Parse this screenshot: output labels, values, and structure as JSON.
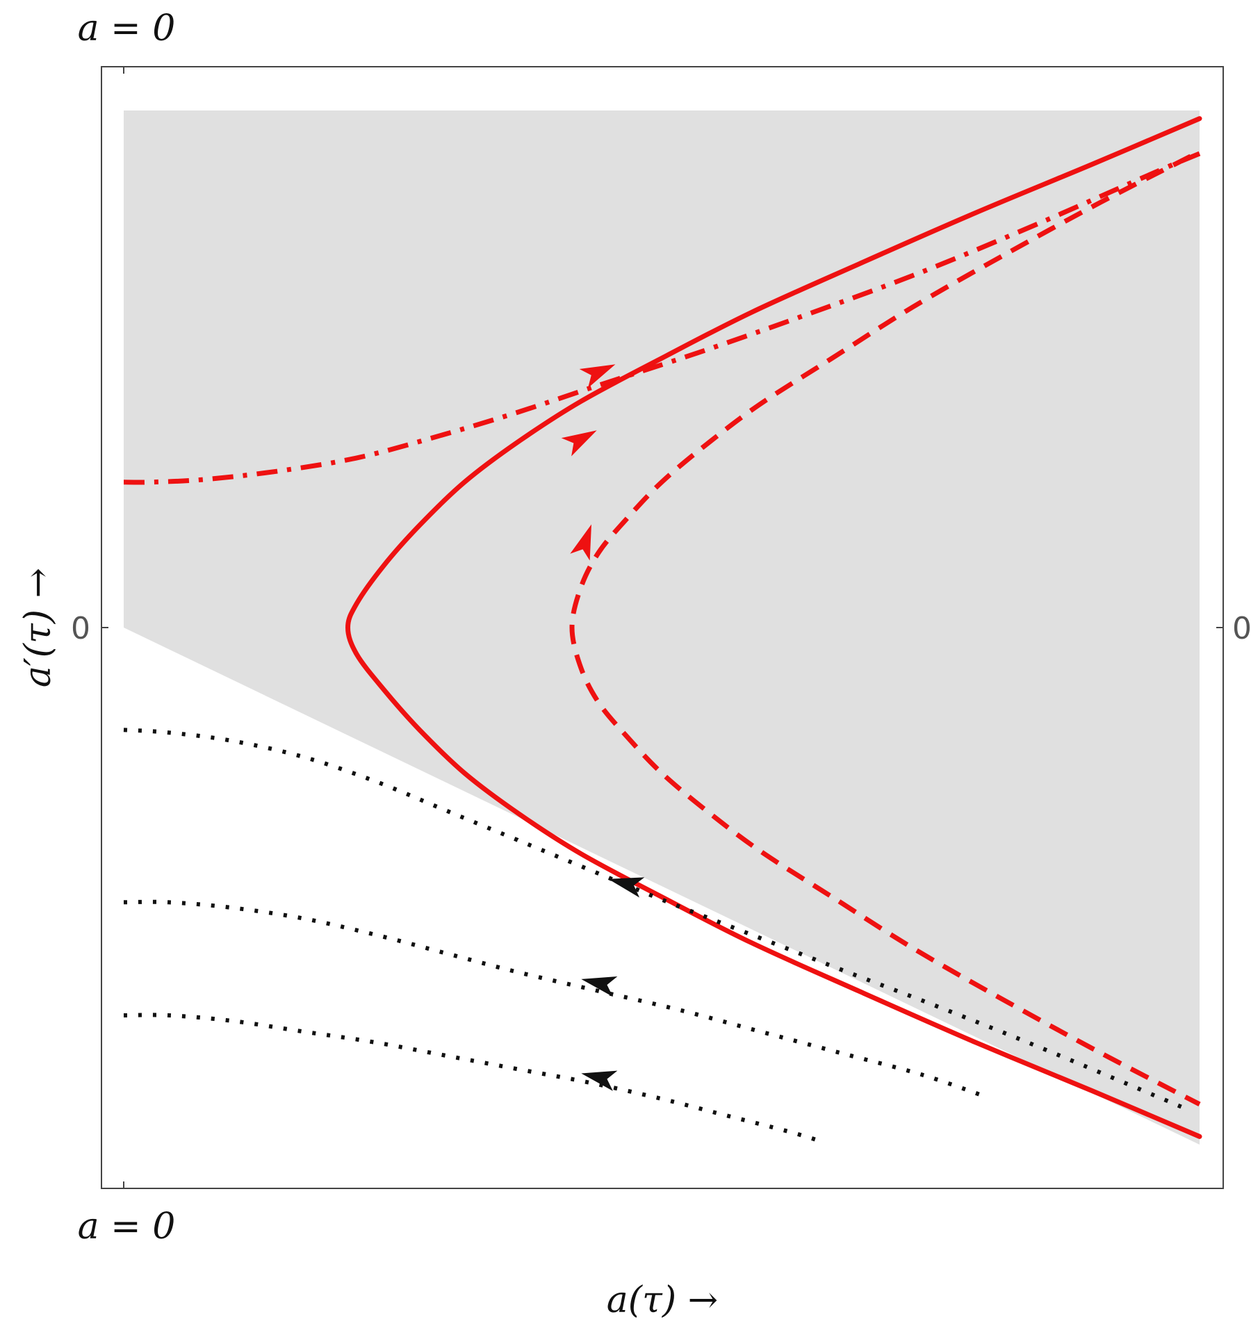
{
  "chart_data": {
    "type": "line",
    "title": "",
    "xlabel": "a(τ) →",
    "ylabel": "a′(τ) →",
    "corner_labels": {
      "top": "a = 0",
      "bottom": "a = 0"
    },
    "xlim": [
      0,
      1.2
    ],
    "ylim": [
      -1.0,
      1.0
    ],
    "y_ticks": [
      {
        "value": 0,
        "label": "0"
      }
    ],
    "x_ticks": [
      0
    ],
    "grid": false,
    "legend": "none",
    "colors": {
      "red": "#ee1111",
      "black": "#111111",
      "shade": "#e0e0e0",
      "frame": "#444444"
    },
    "shaded_region": {
      "color": "#e0e0e0",
      "boundary": [
        [
          0,
          0.96
        ],
        [
          1.2,
          0.96
        ],
        [
          1.2,
          -0.96
        ],
        [
          0,
          0
        ]
      ]
    },
    "series": [
      {
        "style": "solid",
        "color": "#ee1111",
        "arrow": {
          "at": [
            0.51,
            0.35
          ],
          "dir": [
            1,
            0.55
          ]
        },
        "points": [
          [
            1.2,
            0.945
          ],
          [
            1.08,
            0.86
          ],
          [
            0.95,
            0.77
          ],
          [
            0.82,
            0.675
          ],
          [
            0.7,
            0.585
          ],
          [
            0.6,
            0.5
          ],
          [
            0.51,
            0.42
          ],
          [
            0.44,
            0.345
          ],
          [
            0.38,
            0.27
          ],
          [
            0.33,
            0.19
          ],
          [
            0.29,
            0.115
          ],
          [
            0.26,
            0.045
          ],
          [
            0.25,
            0.0
          ],
          [
            0.26,
            -0.05
          ],
          [
            0.29,
            -0.115
          ],
          [
            0.33,
            -0.19
          ],
          [
            0.38,
            -0.27
          ],
          [
            0.44,
            -0.345
          ],
          [
            0.51,
            -0.42
          ],
          [
            0.6,
            -0.5
          ],
          [
            0.7,
            -0.585
          ],
          [
            0.82,
            -0.675
          ],
          [
            0.95,
            -0.77
          ],
          [
            1.08,
            -0.86
          ],
          [
            1.2,
            -0.945
          ]
        ]
      },
      {
        "style": "dashed",
        "color": "#ee1111",
        "arrow": {
          "at": [
            0.515,
            0.16
          ],
          "dir": [
            0.35,
            1
          ]
        },
        "points": [
          [
            1.19,
            0.875
          ],
          [
            1.09,
            0.79
          ],
          [
            0.98,
            0.69
          ],
          [
            0.88,
            0.595
          ],
          [
            0.79,
            0.5
          ],
          [
            0.71,
            0.415
          ],
          [
            0.65,
            0.34
          ],
          [
            0.6,
            0.27
          ],
          [
            0.56,
            0.2
          ],
          [
            0.53,
            0.14
          ],
          [
            0.51,
            0.075
          ],
          [
            0.5,
            0.0
          ],
          [
            0.51,
            -0.075
          ],
          [
            0.53,
            -0.14
          ],
          [
            0.56,
            -0.2
          ],
          [
            0.6,
            -0.27
          ],
          [
            0.65,
            -0.34
          ],
          [
            0.71,
            -0.415
          ],
          [
            0.79,
            -0.5
          ],
          [
            0.88,
            -0.595
          ],
          [
            0.98,
            -0.69
          ],
          [
            1.09,
            -0.79
          ],
          [
            1.2,
            -0.885
          ]
        ]
      },
      {
        "style": "dashdot",
        "color": "#ee1111",
        "arrow": {
          "at": [
            0.53,
            0.475
          ],
          "dir": [
            1,
            0.45
          ]
        },
        "points": [
          [
            0.0,
            0.27
          ],
          [
            0.03,
            0.27
          ],
          [
            0.09,
            0.275
          ],
          [
            0.17,
            0.29
          ],
          [
            0.26,
            0.315
          ],
          [
            0.35,
            0.355
          ],
          [
            0.44,
            0.4
          ],
          [
            0.53,
            0.45
          ],
          [
            0.64,
            0.51
          ],
          [
            0.76,
            0.58
          ],
          [
            0.89,
            0.66
          ],
          [
            1.02,
            0.75
          ],
          [
            1.15,
            0.845
          ],
          [
            1.2,
            0.88
          ]
        ]
      },
      {
        "style": "dotted",
        "color": "#111111",
        "arrow": {
          "at": [
            0.56,
            -0.475
          ],
          "dir": [
            -1,
            0.25
          ]
        },
        "points": [
          [
            0.0,
            -0.19
          ],
          [
            0.05,
            -0.195
          ],
          [
            0.12,
            -0.21
          ],
          [
            0.2,
            -0.24
          ],
          [
            0.28,
            -0.285
          ],
          [
            0.36,
            -0.34
          ],
          [
            0.44,
            -0.395
          ],
          [
            0.52,
            -0.45
          ],
          [
            0.6,
            -0.505
          ],
          [
            0.7,
            -0.57
          ],
          [
            0.8,
            -0.635
          ],
          [
            0.91,
            -0.705
          ],
          [
            1.03,
            -0.785
          ],
          [
            1.18,
            -0.89
          ]
        ]
      },
      {
        "style": "dotted",
        "color": "#111111",
        "arrow": {
          "at": [
            0.53,
            -0.66
          ],
          "dir": [
            -1,
            0.22
          ]
        },
        "points": [
          [
            0.0,
            -0.51
          ],
          [
            0.05,
            -0.51
          ],
          [
            0.12,
            -0.52
          ],
          [
            0.2,
            -0.54
          ],
          [
            0.28,
            -0.57
          ],
          [
            0.36,
            -0.605
          ],
          [
            0.44,
            -0.64
          ],
          [
            0.53,
            -0.675
          ],
          [
            0.62,
            -0.71
          ],
          [
            0.71,
            -0.75
          ],
          [
            0.8,
            -0.79
          ],
          [
            0.89,
            -0.83
          ],
          [
            0.96,
            -0.87
          ]
        ]
      },
      {
        "style": "dotted",
        "color": "#111111",
        "arrow": {
          "at": [
            0.53,
            -0.835
          ],
          "dir": [
            -1,
            0.22
          ]
        },
        "points": [
          [
            0.0,
            -0.72
          ],
          [
            0.05,
            -0.72
          ],
          [
            0.12,
            -0.73
          ],
          [
            0.2,
            -0.75
          ],
          [
            0.28,
            -0.77
          ],
          [
            0.36,
            -0.795
          ],
          [
            0.44,
            -0.82
          ],
          [
            0.52,
            -0.845
          ],
          [
            0.6,
            -0.875
          ],
          [
            0.67,
            -0.905
          ],
          [
            0.74,
            -0.935
          ],
          [
            0.78,
            -0.955
          ]
        ]
      }
    ]
  }
}
